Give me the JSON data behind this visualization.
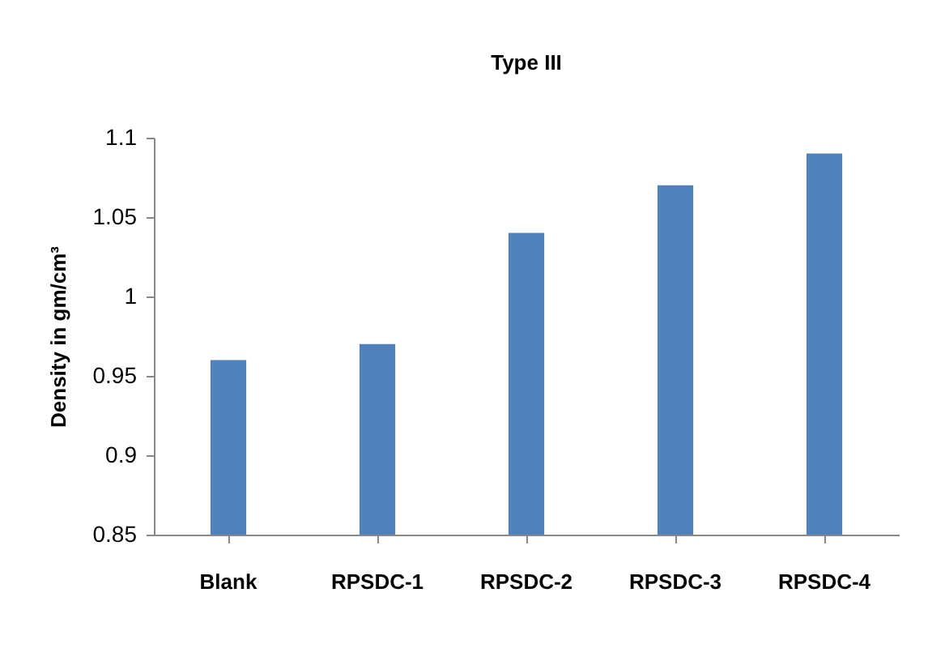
{
  "chart_data": {
    "type": "bar",
    "title": "Type III",
    "ylabel": "Density in gm/cm³",
    "categories": [
      "Blank",
      "RPSDC-1",
      "RPSDC-2",
      "RPSDC-3",
      "RPSDC-4"
    ],
    "values": [
      0.96,
      0.97,
      1.04,
      1.07,
      1.09
    ],
    "color": "#4f81bd",
    "ylim": [
      0.85,
      1.1
    ],
    "yticks": [
      0.85,
      0.9,
      0.95,
      1,
      1.05,
      1.1
    ]
  }
}
